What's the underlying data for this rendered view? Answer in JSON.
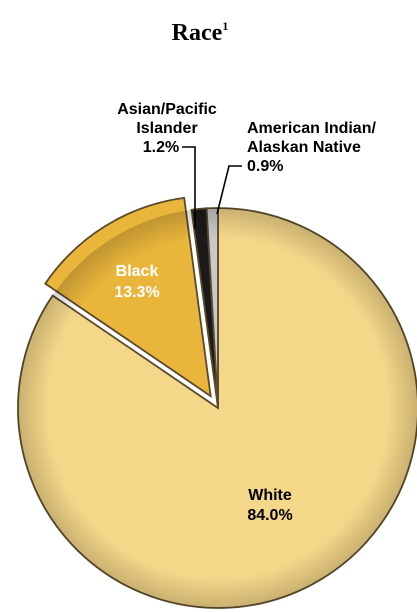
{
  "chart_data": {
    "type": "pie",
    "title": "Race",
    "title_superscript": "1",
    "slices": [
      {
        "label": "White",
        "value": 84.0,
        "value_text": "84.0%",
        "color": "#F5D789",
        "label_color": "#000000"
      },
      {
        "label": "Black",
        "value": 13.3,
        "value_text": "13.3%",
        "color": "#E9B53B",
        "label_color": "#ffffff"
      },
      {
        "label_lines": [
          "Asian/Pacific",
          "Islander"
        ],
        "value": 1.2,
        "value_text": "1.2%",
        "color": "#1a1a1a",
        "label_color": "#000000"
      },
      {
        "label_lines": [
          "American Indian/",
          "Alaskan Native"
        ],
        "value": 0.9,
        "value_text": "0.9%",
        "color": "#C9C9C9",
        "label_color": "#000000"
      }
    ],
    "start_angle_deg": 0,
    "direction": "clockwise"
  }
}
